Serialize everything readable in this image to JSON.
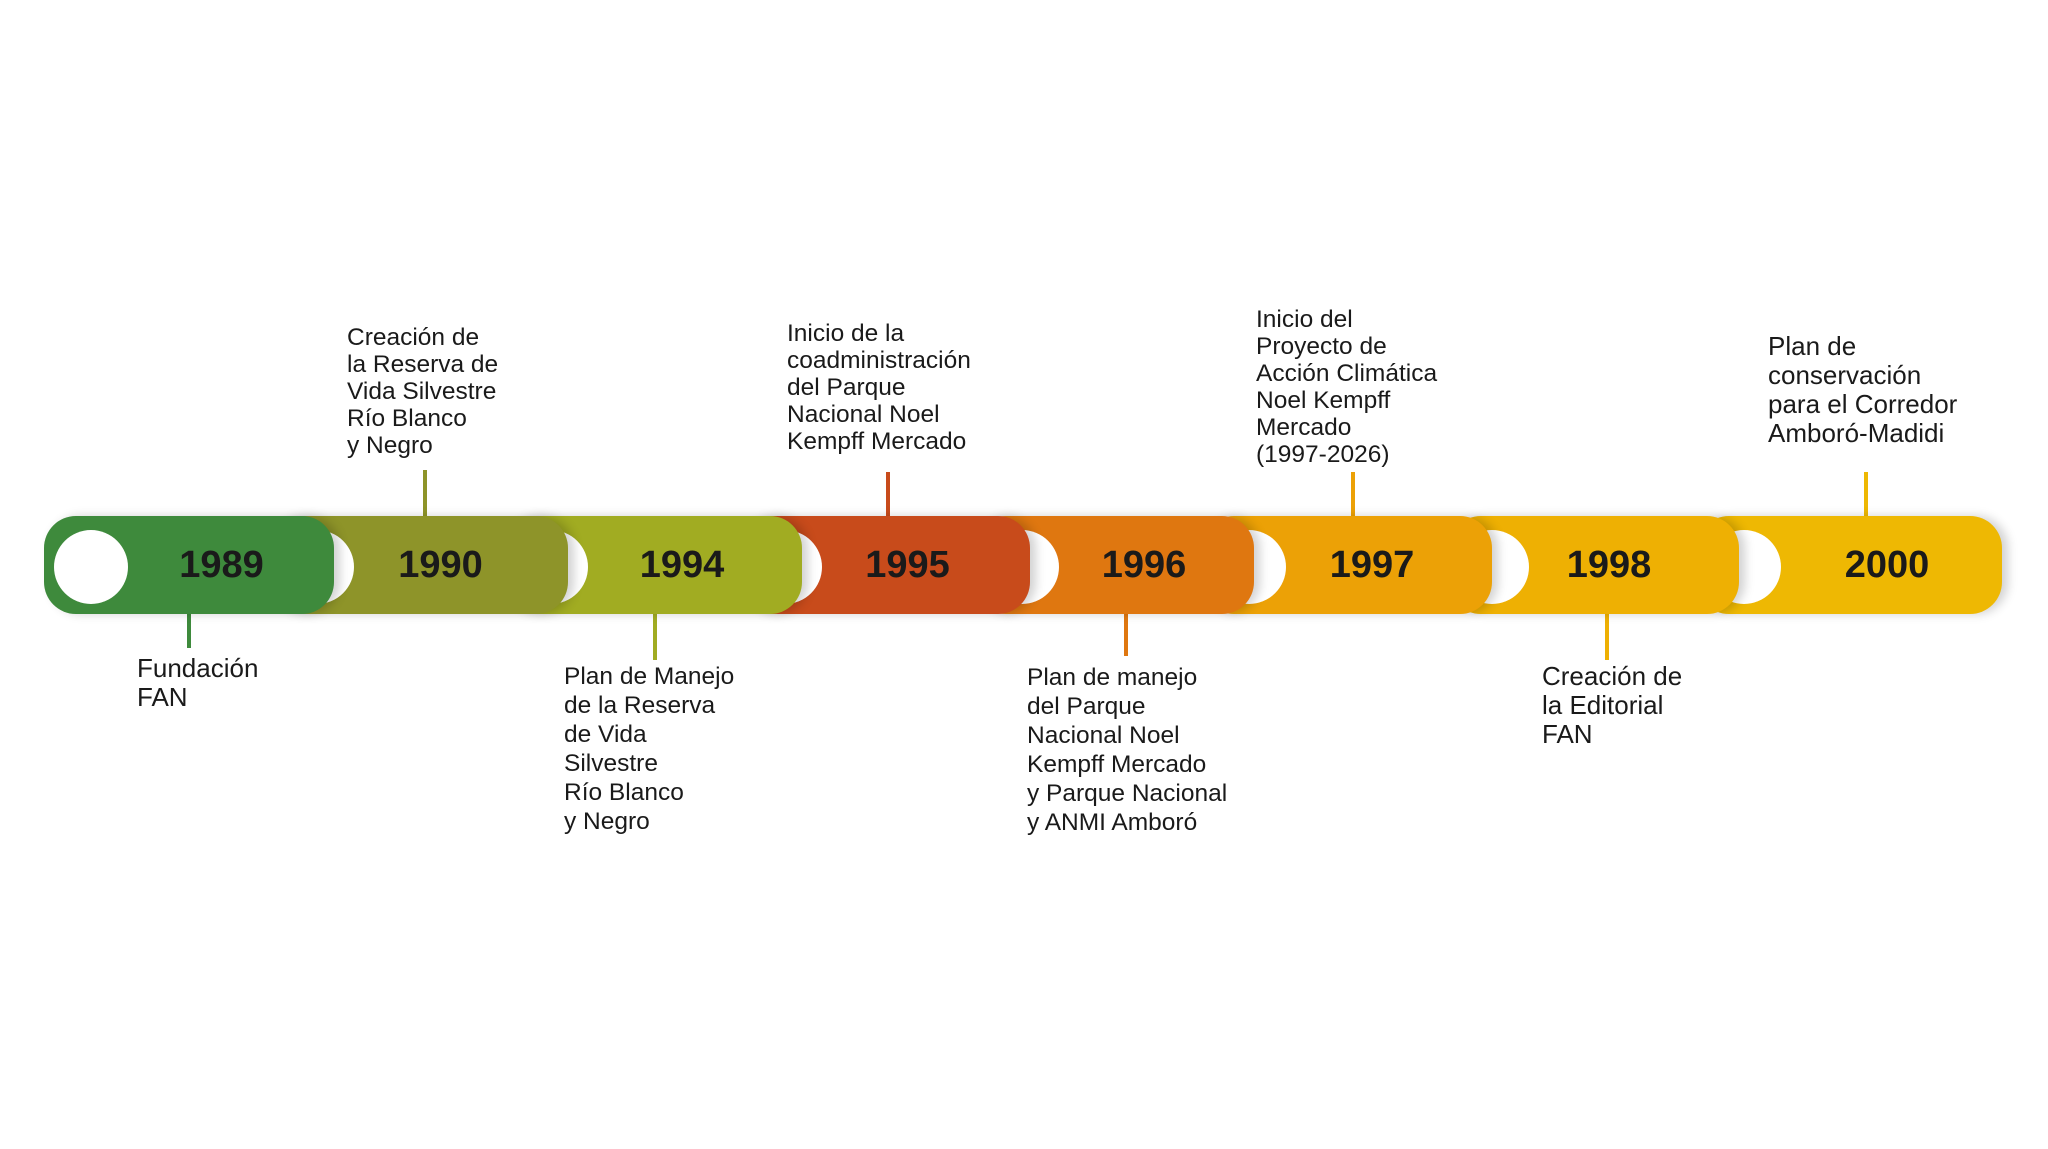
{
  "events": [
    {
      "year": "1989",
      "color": "#3e8a3c",
      "position": "below",
      "text": "Fundación\nFAN"
    },
    {
      "year": "1990",
      "color": "#8e9429",
      "position": "above",
      "text": "Creación de\nla Reserva de\nVida Silvestre\nRío Blanco\ny Negro"
    },
    {
      "year": "1994",
      "color": "#a1ac22",
      "position": "below",
      "text": "Plan de Manejo\nde la Reserva\nde Vida\nSilvestre\nRío Blanco\ny Negro"
    },
    {
      "year": "1995",
      "color": "#c84b1b",
      "position": "above",
      "text": "Inicio de la\ncoadministración\ndel Parque\nNacional Noel\nKempff Mercado"
    },
    {
      "year": "1996",
      "color": "#df7710",
      "position": "below",
      "text": "Plan de manejo\ndel Parque\nNacional Noel\nKempff Mercado\ny Parque Nacional\ny ANMI Amboró"
    },
    {
      "year": "1997",
      "color": "#eca106",
      "position": "above",
      "text": "Inicio del\nProyecto de\nAcción Climática\nNoel Kempff\nMercado\n(1997-2026)"
    },
    {
      "year": "1998",
      "color": "#eeb003",
      "position": "below",
      "text": "Creación de\nla Editorial\nFAN"
    },
    {
      "year": "2000",
      "color": "#eeb803",
      "position": "above",
      "text": "Plan de\nconservación\npara el Corredor\nAmboró-Madidi"
    }
  ]
}
